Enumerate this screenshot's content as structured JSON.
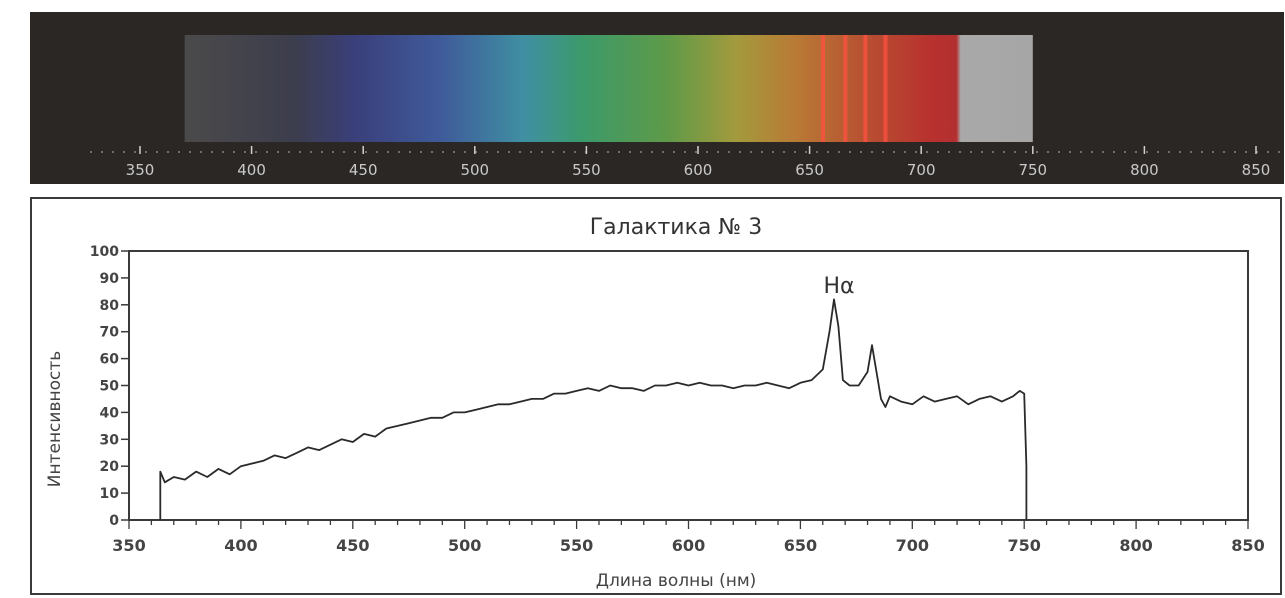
{
  "spectrum_strip": {
    "background": "#2b2725",
    "tick_labels": [
      "350",
      "400",
      "450",
      "500",
      "550",
      "600",
      "650",
      "700",
      "750",
      "800",
      "850"
    ],
    "tick_values": [
      350,
      400,
      450,
      500,
      550,
      600,
      650,
      700,
      750,
      800,
      850
    ],
    "range": [
      330,
      860
    ],
    "band_start": 370,
    "band_end": 750,
    "emission_lines": [
      656,
      666,
      675,
      684
    ]
  },
  "chart_data": {
    "type": "line",
    "title": "Галактика № 3",
    "xlabel": "Длина волны (нм)",
    "ylabel": "Интенсивность",
    "xlim": [
      350,
      850
    ],
    "ylim": [
      0,
      100
    ],
    "x_ticks": [
      "350",
      "400",
      "450",
      "500",
      "550",
      "600",
      "650",
      "700",
      "750",
      "800",
      "850"
    ],
    "x_tick_values": [
      350,
      400,
      450,
      500,
      550,
      600,
      650,
      700,
      750,
      800,
      850
    ],
    "y_ticks": [
      "0",
      "10",
      "20",
      "30",
      "40",
      "50",
      "60",
      "70",
      "80",
      "90",
      "100"
    ],
    "y_tick_values": [
      0,
      10,
      20,
      30,
      40,
      50,
      60,
      70,
      80,
      90,
      100
    ],
    "annotations": [
      {
        "text": "Hα",
        "x": 665,
        "y": 80
      }
    ],
    "line_color": "#2a2a2a",
    "series": [
      {
        "x": [
          364,
          364,
          366,
          370,
          375,
          380,
          385,
          390,
          395,
          400,
          405,
          410,
          415,
          420,
          425,
          430,
          435,
          440,
          445,
          450,
          455,
          460,
          465,
          470,
          475,
          480,
          485,
          490,
          495,
          500,
          505,
          510,
          515,
          520,
          525,
          530,
          535,
          540,
          545,
          550,
          555,
          560,
          565,
          570,
          575,
          580,
          585,
          590,
          595,
          600,
          605,
          610,
          615,
          620,
          625,
          630,
          635,
          640,
          645,
          650,
          655,
          660,
          663,
          665,
          667,
          669,
          672,
          676,
          680,
          682,
          684,
          686,
          688,
          690,
          695,
          700,
          705,
          710,
          715,
          720,
          725,
          730,
          735,
          740,
          745,
          748,
          750,
          751,
          751
        ],
        "y": [
          0,
          18,
          14,
          16,
          15,
          18,
          16,
          19,
          17,
          20,
          21,
          22,
          24,
          23,
          25,
          27,
          26,
          28,
          30,
          29,
          32,
          31,
          34,
          35,
          36,
          37,
          38,
          38,
          40,
          40,
          41,
          42,
          43,
          43,
          44,
          45,
          45,
          47,
          47,
          48,
          49,
          48,
          50,
          49,
          49,
          48,
          50,
          50,
          51,
          50,
          51,
          50,
          50,
          49,
          50,
          50,
          51,
          50,
          49,
          51,
          52,
          56,
          70,
          82,
          72,
          52,
          50,
          50,
          55,
          65,
          55,
          45,
          42,
          46,
          44,
          43,
          46,
          44,
          45,
          46,
          43,
          45,
          46,
          44,
          46,
          48,
          47,
          20,
          0
        ]
      }
    ]
  }
}
